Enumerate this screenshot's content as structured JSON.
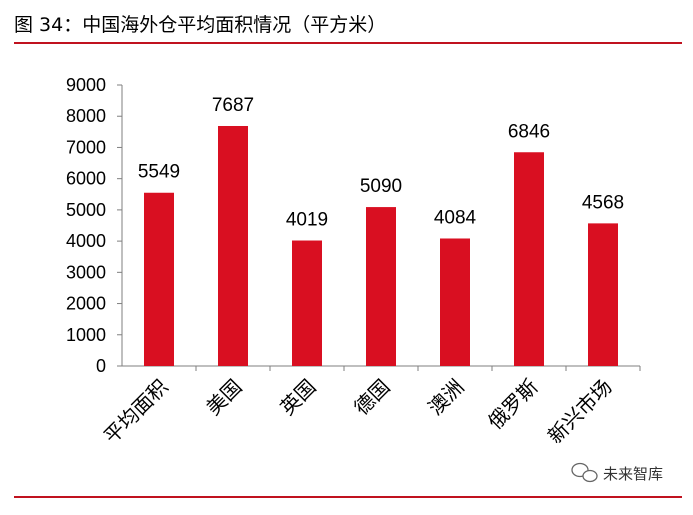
{
  "title": "图 34：中国海外仓平均面积情况（平方米）",
  "colors": {
    "accent": "#c0121f",
    "bar": "#d90f21",
    "axis": "#7f7f7f"
  },
  "watermark": {
    "text": "未来智库",
    "icon": "wechat-icon"
  },
  "chart_data": {
    "type": "bar",
    "title": "",
    "xlabel": "",
    "ylabel": "",
    "ylim": [
      0,
      9000
    ],
    "yticks": [
      0,
      1000,
      2000,
      3000,
      4000,
      5000,
      6000,
      7000,
      8000,
      9000
    ],
    "grid": false,
    "categories": [
      "平均面积",
      "美国",
      "英国",
      "德国",
      "澳洲",
      "俄罗斯",
      "新兴市场"
    ],
    "values": [
      5549,
      7687,
      4019,
      5090,
      4084,
      6846,
      4568
    ]
  }
}
